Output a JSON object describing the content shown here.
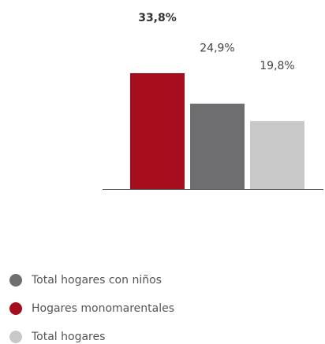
{
  "chart_data": {
    "type": "bar",
    "series": [
      {
        "name": "Hogares monomarentales",
        "color": "#a50d1c",
        "values": [
          33.8
        ],
        "value_labels": [
          "33,8%"
        ]
      },
      {
        "name": "Total hogares con niños",
        "color": "#6e6e70",
        "values": [
          24.9
        ],
        "value_labels": [
          "24,9%"
        ]
      },
      {
        "name": "Total hogares",
        "color": "#c8c8c8",
        "values": [
          19.8
        ],
        "value_labels": [
          "19,8%"
        ]
      }
    ]
  }
}
